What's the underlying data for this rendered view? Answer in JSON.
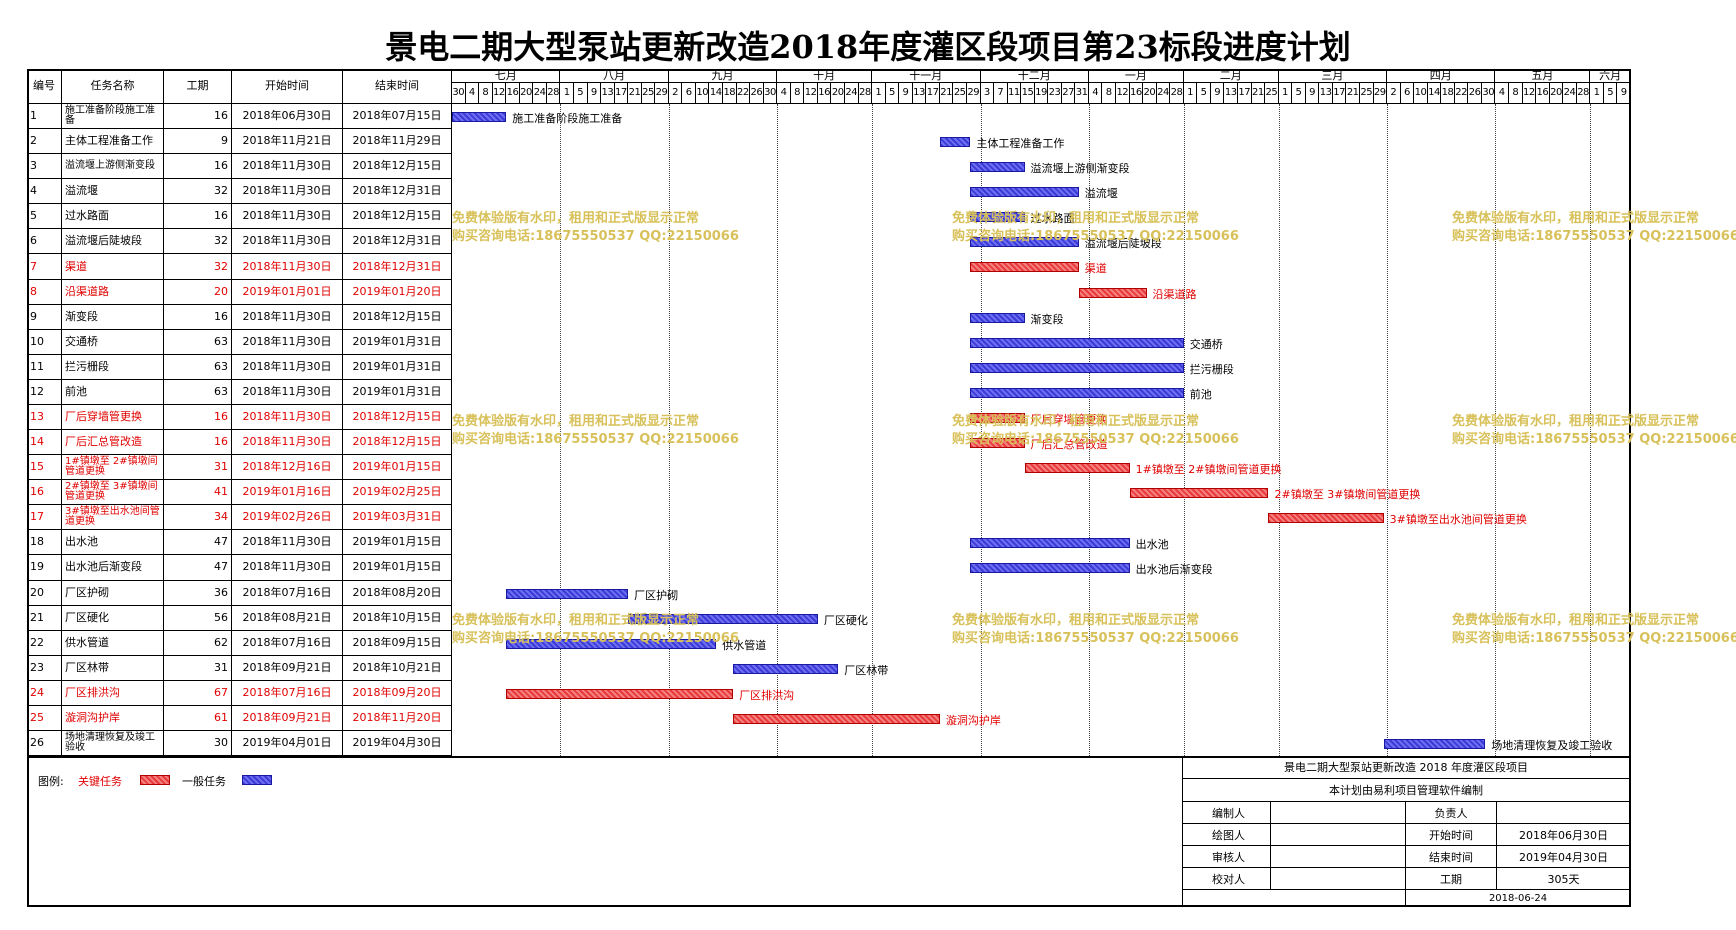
{
  "title": "景电二期大型泵站更新改造2018年度灌区段项目第23标段进度计划",
  "table": {
    "headers": [
      "编号",
      "任务名称",
      "工期",
      "开始时间",
      "结束时间"
    ],
    "months": [
      "七月",
      "八月",
      "九月",
      "十月",
      "十一月",
      "十二月",
      "一月",
      "二月",
      "三月",
      "四月",
      "五月",
      "六月"
    ],
    "day_ticks": [
      30,
      4,
      8,
      12,
      16,
      20,
      24,
      28,
      1,
      5,
      9,
      13,
      17,
      21,
      25,
      29,
      2,
      6,
      10,
      14,
      18,
      22,
      26,
      30,
      4,
      8,
      12,
      16,
      20,
      24,
      28,
      1,
      5,
      9,
      13,
      17,
      21,
      25,
      29,
      3,
      7,
      11,
      15,
      19,
      23,
      27,
      31,
      4,
      8,
      12,
      16,
      20,
      24,
      28,
      1,
      5,
      9,
      13,
      17,
      21,
      25,
      1,
      5,
      9,
      13,
      17,
      21,
      25,
      29,
      2,
      6,
      10,
      14,
      18,
      22,
      26,
      30,
      4,
      8,
      12,
      16,
      20,
      24,
      28,
      1,
      5,
      9
    ],
    "rows": [
      {
        "id": 1,
        "name": "施工准备阶段施工准备",
        "days": 16,
        "start": "2018年06月30日",
        "end": "2018年07月15日",
        "critical": false
      },
      {
        "id": 2,
        "name": "主体工程准备工作",
        "days": 9,
        "start": "2018年11月21日",
        "end": "2018年11月29日",
        "critical": false
      },
      {
        "id": 3,
        "name": "溢流堰上游侧渐变段",
        "days": 16,
        "start": "2018年11月30日",
        "end": "2018年12月15日",
        "critical": false
      },
      {
        "id": 4,
        "name": "溢流堰",
        "days": 32,
        "start": "2018年11月30日",
        "end": "2018年12月31日",
        "critical": false
      },
      {
        "id": 5,
        "name": "过水路面",
        "days": 16,
        "start": "2018年11月30日",
        "end": "2018年12月15日",
        "critical": false
      },
      {
        "id": 6,
        "name": "溢流堰后陡坡段",
        "days": 32,
        "start": "2018年11月30日",
        "end": "2018年12月31日",
        "critical": false
      },
      {
        "id": 7,
        "name": "渠道",
        "days": 32,
        "start": "2018年11月30日",
        "end": "2018年12月31日",
        "critical": true
      },
      {
        "id": 8,
        "name": "沿渠道路",
        "days": 20,
        "start": "2019年01月01日",
        "end": "2019年01月20日",
        "critical": true
      },
      {
        "id": 9,
        "name": "渐变段",
        "days": 16,
        "start": "2018年11月30日",
        "end": "2018年12月15日",
        "critical": false
      },
      {
        "id": 10,
        "name": "交通桥",
        "days": 63,
        "start": "2018年11月30日",
        "end": "2019年01月31日",
        "critical": false
      },
      {
        "id": 11,
        "name": "拦污栅段",
        "days": 63,
        "start": "2018年11月30日",
        "end": "2019年01月31日",
        "critical": false
      },
      {
        "id": 12,
        "name": "前池",
        "days": 63,
        "start": "2018年11月30日",
        "end": "2019年01月31日",
        "critical": false
      },
      {
        "id": 13,
        "name": "厂后穿墙管更换",
        "days": 16,
        "start": "2018年11月30日",
        "end": "2018年12月15日",
        "critical": true
      },
      {
        "id": 14,
        "name": "厂后汇总管改造",
        "days": 16,
        "start": "2018年11月30日",
        "end": "2018年12月15日",
        "critical": true
      },
      {
        "id": 15,
        "name": "1#镇墩至 2#镇墩间管道更换",
        "days": 31,
        "start": "2018年12月16日",
        "end": "2019年01月15日",
        "critical": true
      },
      {
        "id": 16,
        "name": "2#镇墩至 3#镇墩间管道更换",
        "days": 41,
        "start": "2019年01月16日",
        "end": "2019年02月25日",
        "critical": true
      },
      {
        "id": 17,
        "name": "3#镇墩至出水池间管道更换",
        "days": 34,
        "start": "2019年02月26日",
        "end": "2019年03月31日",
        "critical": true
      },
      {
        "id": 18,
        "name": "出水池",
        "days": 47,
        "start": "2018年11月30日",
        "end": "2019年01月15日",
        "critical": false
      },
      {
        "id": 19,
        "name": "出水池后渐变段",
        "days": 47,
        "start": "2018年11月30日",
        "end": "2019年01月15日",
        "critical": false
      },
      {
        "id": 20,
        "name": "厂区护砌",
        "days": 36,
        "start": "2018年07月16日",
        "end": "2018年08月20日",
        "critical": false
      },
      {
        "id": 21,
        "name": "厂区硬化",
        "days": 56,
        "start": "2018年08月21日",
        "end": "2018年10月15日",
        "critical": false
      },
      {
        "id": 22,
        "name": "供水管道",
        "days": 62,
        "start": "2018年07月16日",
        "end": "2018年09月15日",
        "critical": false
      },
      {
        "id": 23,
        "name": "厂区林带",
        "days": 31,
        "start": "2018年09月21日",
        "end": "2018年10月21日",
        "critical": false
      },
      {
        "id": 24,
        "name": "厂区排洪沟",
        "days": 67,
        "start": "2018年07月16日",
        "end": "2018年09月20日",
        "critical": true
      },
      {
        "id": 25,
        "name": "漩洞沟护岸",
        "days": 61,
        "start": "2018年09月21日",
        "end": "2018年11月20日",
        "critical": true
      },
      {
        "id": 26,
        "name": "场地清理恢复及竣工验收",
        "days": 30,
        "start": "2019年04月01日",
        "end": "2019年04月30日",
        "critical": false
      }
    ]
  },
  "watermark": [
    "免费体验版有水印，租用和正式版显示正常",
    "购买咨询电话:18675550537 QQ:22150066"
  ],
  "legend": {
    "label": "图例:",
    "critical": "关键任务",
    "normal": "一般任务"
  },
  "footer": {
    "project": "景电二期大型泵站更新改造 2018 年度灌区段项目",
    "note": "本计划由易利项目管理软件编制",
    "rows": [
      {
        "left": "编制人",
        "right_label": "负责人"
      },
      {
        "left": "绘图人",
        "right_label": "开始时间",
        "right_value": "2018年06月30日"
      },
      {
        "left": "审核人",
        "right_label": "结束时间",
        "right_value": "2019年04月30日"
      },
      {
        "left": "校对人",
        "right_label": "工期",
        "right_value": "305天"
      }
    ],
    "date": "2018-06-24"
  }
}
